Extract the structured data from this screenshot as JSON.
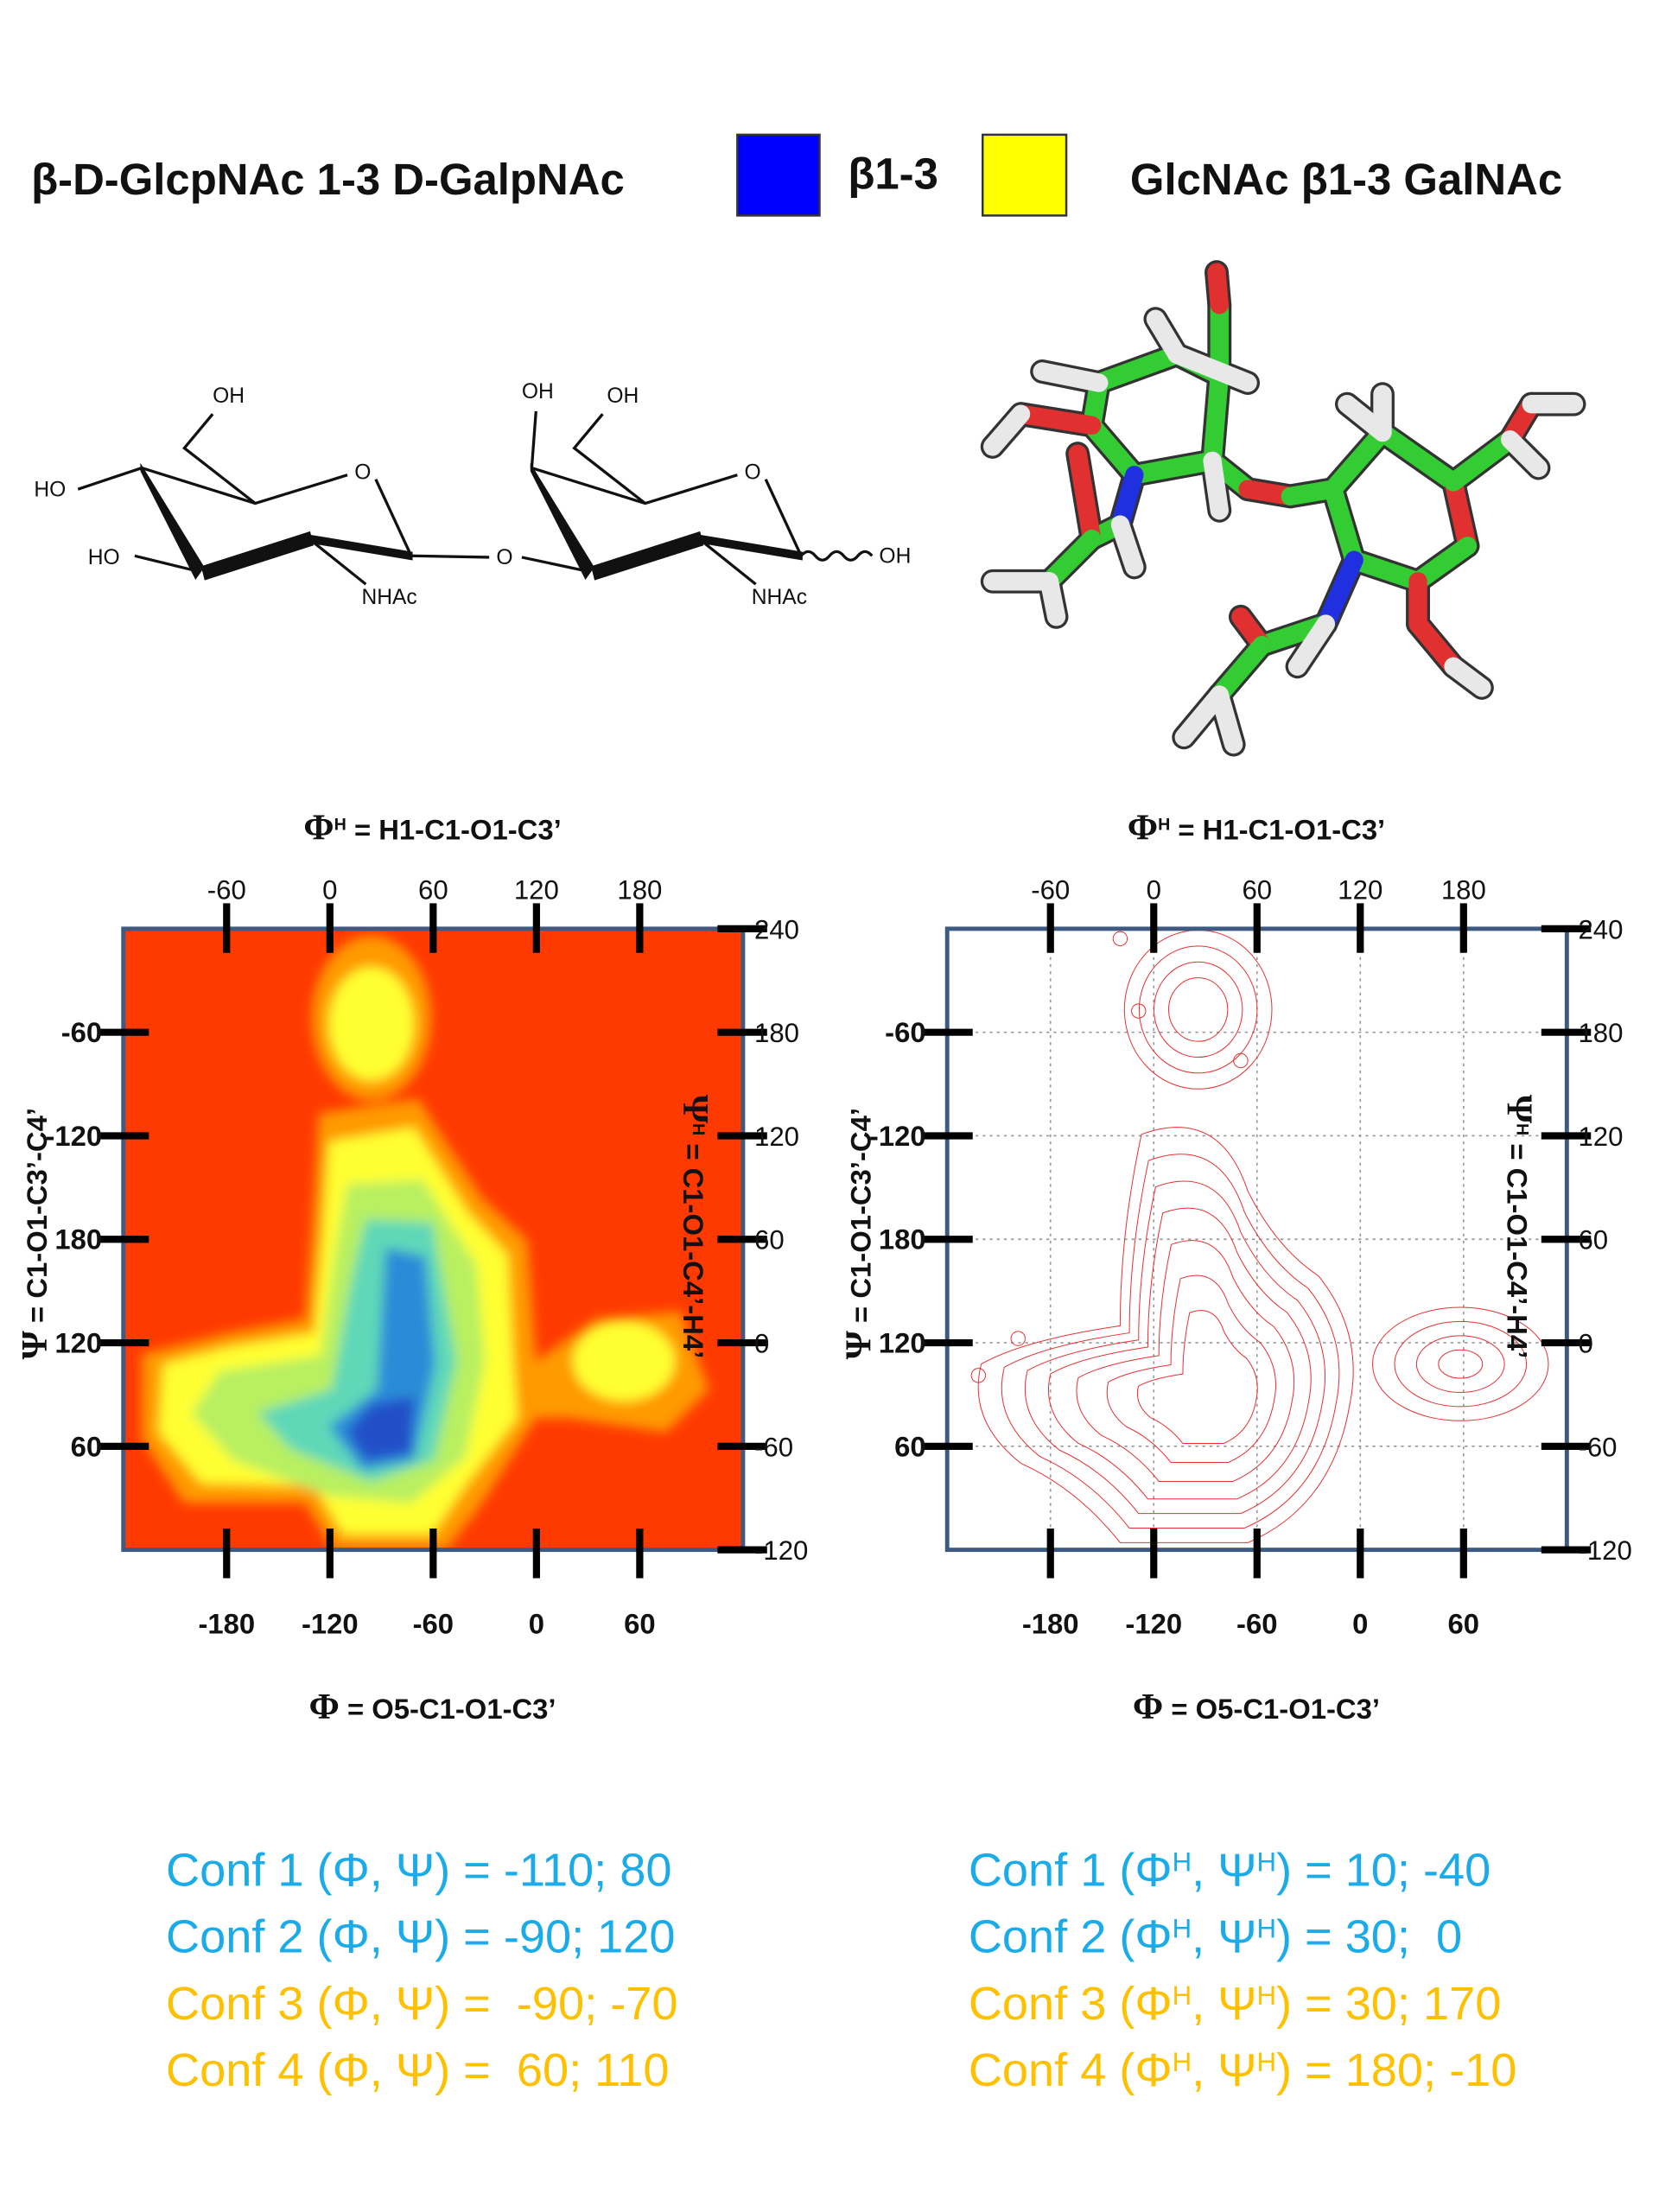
{
  "header": {
    "left_title": "β-D-GlcpNAc 1-3 D-GalpNAc",
    "legend_label": "β1-3",
    "right_title": "GlcNAc β1-3 GalNAc"
  },
  "structure_labels": [
    "OH",
    "HO",
    "O",
    "HO",
    "NHAc",
    "O",
    "OH",
    "OH",
    "O",
    "NHAc",
    "OH"
  ],
  "plots": [
    {
      "style": "heatmap",
      "top_label": {
        "symbol": "Φ",
        "sup": "H",
        "text": " = H1-C1-O1-C3’"
      },
      "bottom_label": {
        "symbol": "Φ",
        "text": " = O5-C1-O1-C3’"
      },
      "left_label": {
        "symbol": "Ψ",
        "text": " = C1-O1-C3’-C4’"
      },
      "right_label": {
        "symbol": "Ψ",
        "sup": "H",
        "text": " = C1-O1-C4’-H4’"
      },
      "xlim": [
        -240,
        120
      ],
      "xticks": [
        -180,
        -120,
        -60,
        0,
        60
      ],
      "x2lim": [
        -120,
        240
      ],
      "x2ticks": [
        -60,
        0,
        60,
        120,
        180
      ],
      "ylim": [
        0,
        360
      ],
      "yticks": [
        60,
        120,
        180,
        {
          "value": 240,
          "label": "-120"
        },
        {
          "value": 300,
          "label": "-60"
        }
      ],
      "y2lim": [
        -120,
        240
      ],
      "y2ticks": [
        -120,
        -60,
        0,
        60,
        120,
        180,
        240
      ],
      "grid": false
    },
    {
      "style": "contour",
      "top_label": {
        "symbol": "Φ",
        "sup": "H",
        "text": " = H1-C1-O1-C3’"
      },
      "bottom_label": {
        "symbol": "Φ",
        "text": " = O5-C1-O1-C3’"
      },
      "left_label": {
        "symbol": "Ψ",
        "text": " = C1-O1-C3’-C4’"
      },
      "right_label": {
        "symbol": "Ψ",
        "sup": "H",
        "text": " = C1-O1-C4’-H4’"
      },
      "xlim": [
        -240,
        120
      ],
      "xticks": [
        -180,
        -120,
        -60,
        0,
        60
      ],
      "x2lim": [
        -120,
        240
      ],
      "x2ticks": [
        -60,
        0,
        60,
        120,
        180
      ],
      "ylim": [
        0,
        360
      ],
      "yticks": [
        60,
        120,
        180,
        {
          "value": 240,
          "label": "-120"
        },
        {
          "value": 300,
          "label": "-60"
        }
      ],
      "y2lim": [
        -120,
        240
      ],
      "y2ticks": [
        -120,
        -60,
        0,
        60,
        120,
        180,
        240
      ],
      "grid": true
    }
  ],
  "conformations": [
    {
      "lines": [
        {
          "color": "#1aabe8",
          "parts": [
            "Conf 1 (Φ, Ψ) = -110; 80"
          ]
        },
        {
          "color": "#1aabe8",
          "parts": [
            "Conf 2 (Φ, Ψ) = -90; 120"
          ]
        },
        {
          "color": "#ffc000",
          "parts": [
            "Conf 3 (Φ, Ψ) =  -90; -70"
          ]
        },
        {
          "color": "#ffc000",
          "parts": [
            "Conf 4 (Φ, Ψ) =  60; 110"
          ]
        }
      ]
    },
    {
      "lines": [
        {
          "color": "#1aabe8",
          "parts": [
            "Conf 1 (Φ",
            "H",
            ", Ψ",
            "H",
            ") = 10; -40"
          ]
        },
        {
          "color": "#1aabe8",
          "parts": [
            "Conf 2 (Φ",
            "H",
            ", Ψ",
            "H",
            ") = 30;  0"
          ]
        },
        {
          "color": "#ffc000",
          "parts": [
            "Conf 3 (Φ",
            "H",
            ", Ψ",
            "H",
            ") = 30; 170"
          ]
        },
        {
          "color": "#ffc000",
          "parts": [
            "Conf 4 (Φ",
            "H",
            ", Ψ",
            "H",
            ") = 180; -10"
          ]
        }
      ]
    }
  ]
}
